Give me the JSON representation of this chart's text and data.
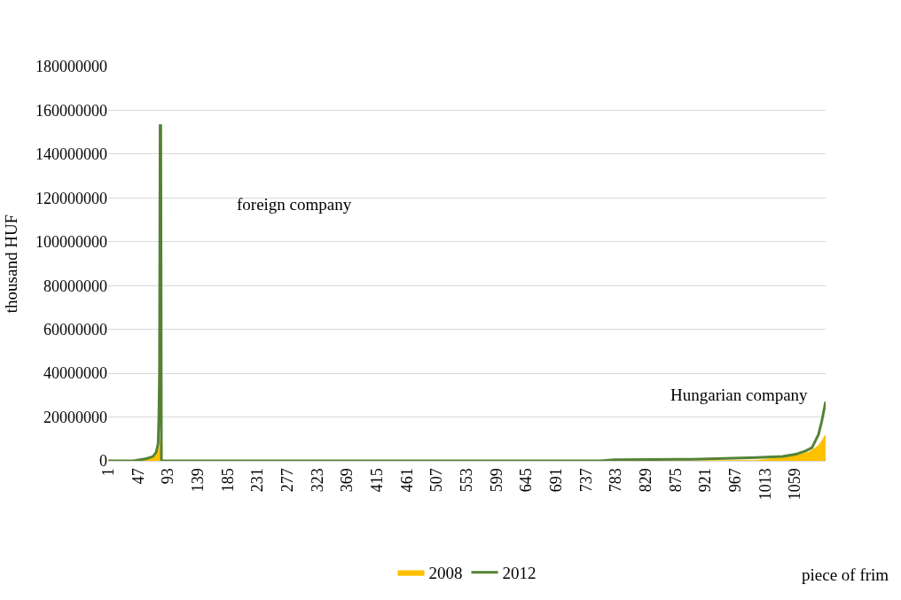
{
  "chart_data": {
    "type": "area",
    "xlabel": "piece of frim",
    "ylabel": "thousand HUF",
    "annotations": [
      "foreign company",
      "Hungarian company"
    ],
    "series": [
      {
        "name": "2008",
        "color": "#ffc000",
        "x": [
          1,
          40,
          50,
          60,
          70,
          75,
          78,
          80,
          82,
          83,
          84,
          760,
          900,
          1000,
          1050,
          1080,
          1095,
          1106
        ],
        "values": [
          0,
          0,
          500000,
          1000000,
          2000000,
          3000000,
          5000000,
          7000000,
          10800000,
          0,
          0,
          0,
          100000,
          300000,
          2000000,
          4000000,
          7000000,
          12000000
        ]
      },
      {
        "name": "2012",
        "type": "line",
        "color": "#548235",
        "x": [
          1,
          40,
          50,
          60,
          70,
          75,
          78,
          79,
          80,
          81,
          82,
          83,
          760,
          780,
          900,
          1000,
          1040,
          1060,
          1075,
          1085,
          1095,
          1100,
          1106
        ],
        "values": [
          0,
          0,
          500000,
          1000000,
          2000000,
          4000000,
          8000000,
          20000000,
          40000000,
          153000000,
          153000000,
          0,
          0,
          500000,
          700000,
          1500000,
          2000000,
          3000000,
          4500000,
          6000000,
          12000000,
          18000000,
          27000000
        ]
      }
    ],
    "xlim": [
      1,
      1106
    ],
    "xticks": [
      1,
      47,
      93,
      139,
      185,
      231,
      277,
      323,
      369,
      415,
      461,
      507,
      553,
      599,
      645,
      691,
      737,
      783,
      829,
      875,
      921,
      967,
      1013,
      1059
    ],
    "ylim": [
      0,
      180000000
    ],
    "yticks": [
      0,
      20000000,
      40000000,
      60000000,
      80000000,
      100000000,
      120000000,
      140000000,
      160000000,
      180000000
    ],
    "grid": "y",
    "legend": "bottom",
    "marker": "none"
  }
}
